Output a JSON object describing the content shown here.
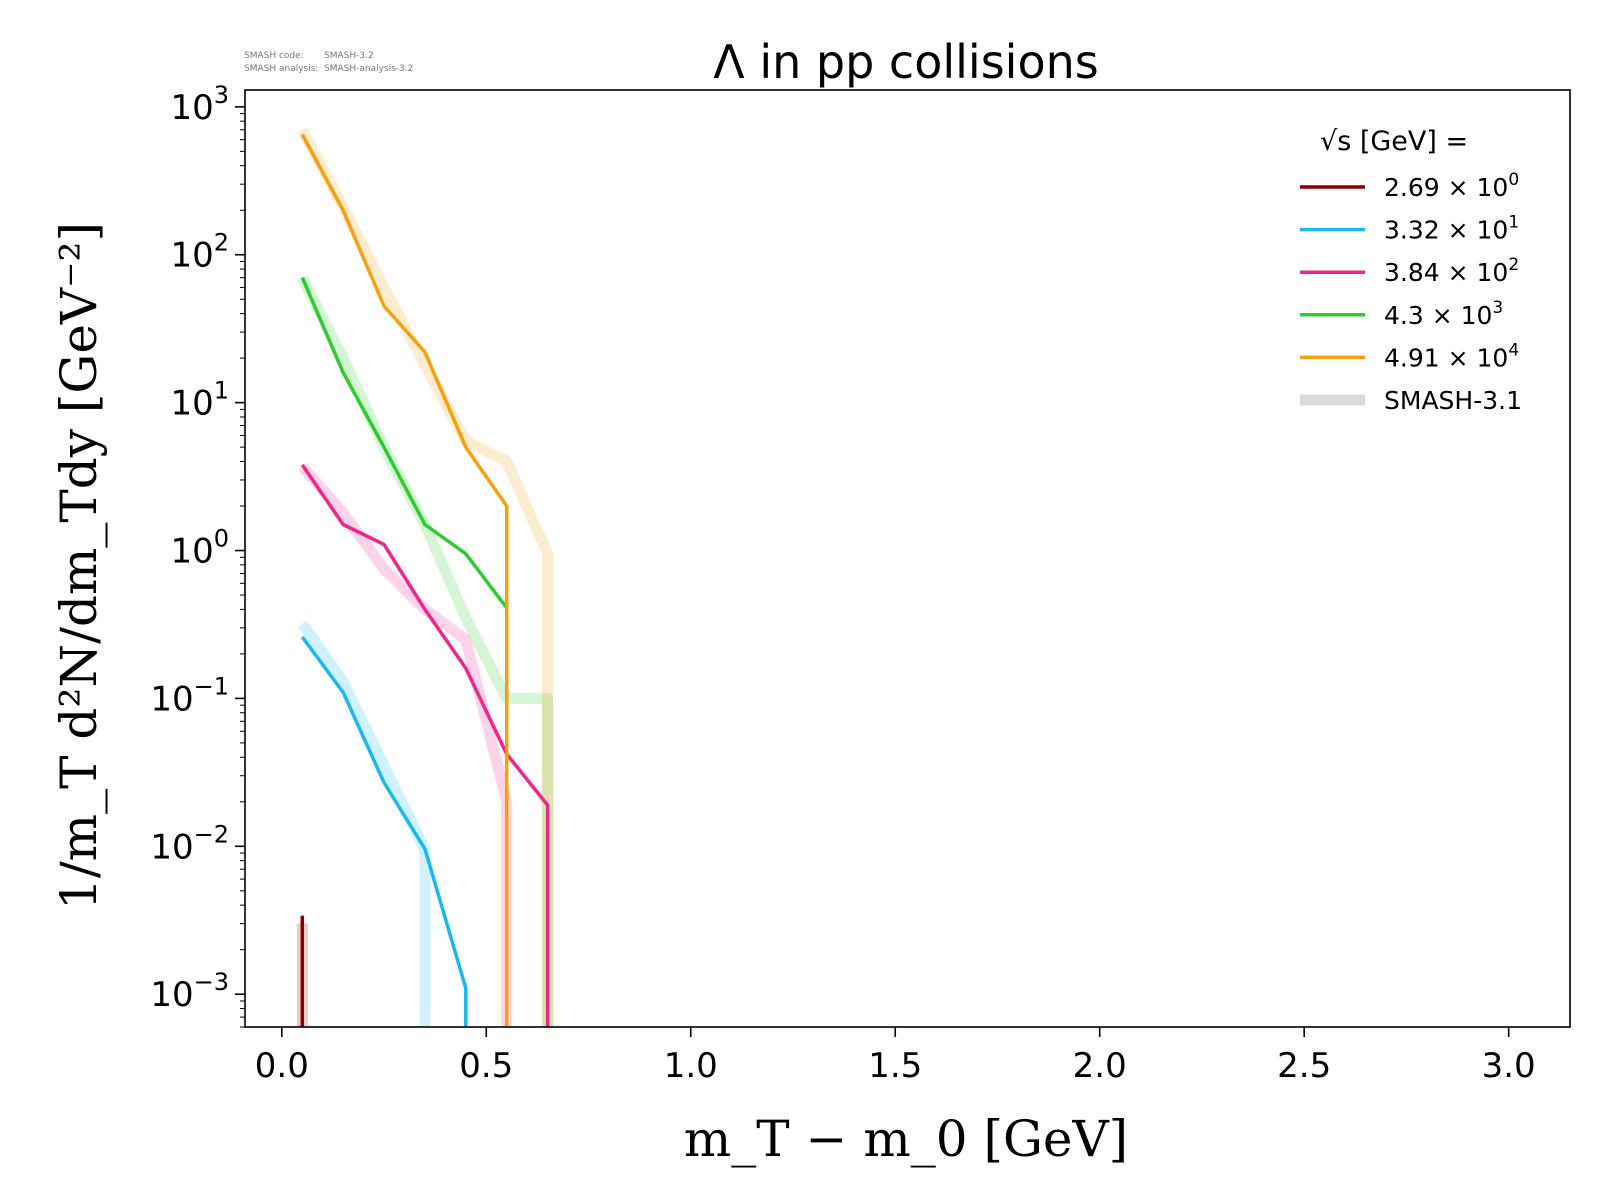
{
  "meta_text": {
    "code_label": "SMASH code:",
    "code_value": "SMASH-3.2",
    "analysis_label": "SMASH analysis:",
    "analysis_value": "SMASH-analysis-3.2"
  },
  "chart_data": {
    "type": "line",
    "title": "Λ in pp collisions",
    "xlabel": "m_T − m_0 [GeV]",
    "ylabel": "1/m_T d²N/dm_Tdy [GeV⁻²]",
    "xlim": [
      -0.09,
      3.15
    ],
    "ylim": [
      0.0006,
      1300
    ],
    "yscale": "log",
    "grid": false,
    "legend_position": "top-right",
    "legend_title": "√s [GeV] =",
    "x_ticks": [
      {
        "value": 0.0,
        "label": "0.0"
      },
      {
        "value": 0.5,
        "label": "0.5"
      },
      {
        "value": 1.0,
        "label": "1.0"
      },
      {
        "value": 1.5,
        "label": "1.5"
      },
      {
        "value": 2.0,
        "label": "2.0"
      },
      {
        "value": 2.5,
        "label": "2.5"
      },
      {
        "value": 3.0,
        "label": "3.0"
      }
    ],
    "y_ticks": [
      {
        "value": 0.001,
        "base": "10",
        "exp": "−3"
      },
      {
        "value": 0.01,
        "base": "10",
        "exp": "−2"
      },
      {
        "value": 0.1,
        "base": "10",
        "exp": "−1"
      },
      {
        "value": 1,
        "base": "10",
        "exp": "0"
      },
      {
        "value": 10,
        "base": "10",
        "exp": "1"
      },
      {
        "value": 100,
        "base": "10",
        "exp": "2"
      },
      {
        "value": 1000,
        "base": "10",
        "exp": "3"
      }
    ],
    "series": [
      {
        "legend_mantissa": "2.69",
        "legend_exp": "0",
        "color": "#8b0000",
        "x": [
          0.05,
          0.05
        ],
        "y": [
          0.0006,
          0.0034
        ],
        "ref_x": [
          0.05,
          0.05
        ],
        "ref_y": [
          0.0006,
          0.003
        ]
      },
      {
        "legend_mantissa": "3.32",
        "legend_exp": "1",
        "color": "#1ab8f0",
        "x": [
          0.05,
          0.15,
          0.25,
          0.35,
          0.45,
          0.45
        ],
        "y": [
          0.26,
          0.11,
          0.027,
          0.0096,
          0.0011,
          0.0006
        ],
        "ref_x": [
          0.05,
          0.15,
          0.25,
          0.35,
          0.35
        ],
        "ref_y": [
          0.32,
          0.13,
          0.035,
          0.0095,
          0.0006
        ]
      },
      {
        "legend_mantissa": "3.84",
        "legend_exp": "2",
        "color": "#f0258c",
        "x": [
          0.05,
          0.15,
          0.25,
          0.35,
          0.45,
          0.55,
          0.65,
          0.65
        ],
        "y": [
          3.8,
          1.5,
          1.1,
          0.4,
          0.16,
          0.042,
          0.019,
          0.0006
        ],
        "ref_x": [
          0.05,
          0.15,
          0.25,
          0.35,
          0.45,
          0.55,
          0.55
        ],
        "ref_y": [
          3.7,
          1.8,
          0.75,
          0.4,
          0.25,
          0.02,
          0.0006
        ]
      },
      {
        "legend_mantissa": "4.3",
        "legend_exp": "3",
        "color": "#2fcc2f",
        "x": [
          0.05,
          0.15,
          0.25,
          0.35,
          0.45,
          0.55
        ],
        "y": [
          70,
          16,
          5,
          1.5,
          0.95,
          0.41
        ],
        "ref_x": [
          0.05,
          0.15,
          0.25,
          0.35,
          0.45,
          0.55,
          0.65,
          0.65
        ],
        "ref_y": [
          70,
          20,
          5,
          1.5,
          0.35,
          0.1,
          0.1,
          0.0006
        ]
      },
      {
        "legend_mantissa": "4.91",
        "legend_exp": "4",
        "color": "#f7a00d",
        "x": [
          0.05,
          0.15,
          0.25,
          0.35,
          0.45,
          0.55,
          0.55
        ],
        "y": [
          650,
          200,
          45,
          22,
          5,
          2,
          0.0006
        ],
        "ref_x": [
          0.05,
          0.15,
          0.25,
          0.35,
          0.45,
          0.55,
          0.65,
          0.65
        ],
        "ref_y": [
          700,
          210,
          60,
          18,
          5.5,
          4,
          0.95,
          0.0006
        ]
      }
    ],
    "reference": {
      "name": "SMASH-3.1",
      "color": "#dddad6"
    }
  }
}
